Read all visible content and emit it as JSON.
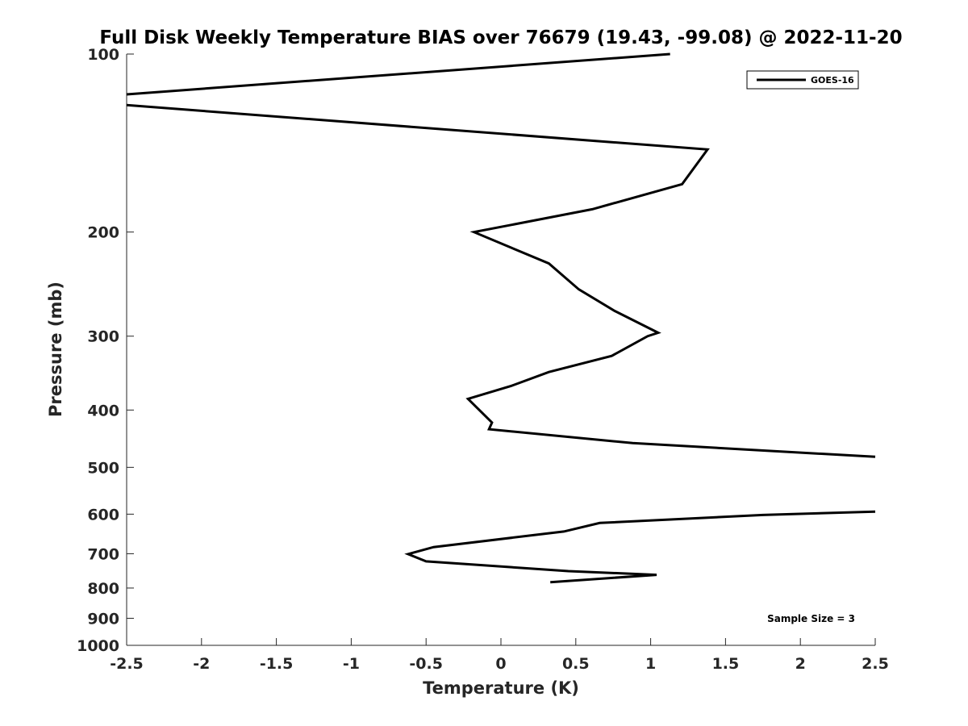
{
  "chart_data": {
    "type": "line",
    "title": "Full Disk Weekly Temperature BIAS over 76679 (19.43, -99.08) @ 2022-11-20",
    "xlabel": "Temperature (K)",
    "ylabel": "Pressure (mb)",
    "xlim": [
      -2.5,
      2.5
    ],
    "ylim": [
      100,
      1000
    ],
    "yscale": "log",
    "yreversed": true,
    "xticks": [
      -2.5,
      -2,
      -1.5,
      -1,
      -0.5,
      0,
      0.5,
      1,
      1.5,
      2,
      2.5
    ],
    "xtick_labels": [
      "-2.5",
      "-2",
      "-1.5",
      "-1",
      "-0.5",
      "0",
      "0.5",
      "1",
      "1.5",
      "2",
      "2.5"
    ],
    "yticks": [
      100,
      200,
      300,
      400,
      500,
      600,
      700,
      800,
      900,
      1000
    ],
    "ytick_labels": [
      "100",
      "200",
      "300",
      "400",
      "500",
      "600",
      "700",
      "800",
      "900",
      "1000"
    ],
    "grid": false,
    "legend_position": "top-right",
    "annotation": "Sample Size = 3",
    "series": [
      {
        "name": "GOES-16",
        "color": "#000000",
        "segments": [
          {
            "x": [
              1.13,
              -2.5
            ],
            "y": [
              100,
              117
            ]
          },
          {
            "x": [
              -2.5,
              1.38,
              1.21,
              0.61,
              -0.18,
              0.32,
              0.52,
              0.76,
              1.05,
              0.98,
              0.74,
              0.32,
              0.07,
              -0.22,
              -0.06,
              -0.08,
              0.88,
              2.5
            ],
            "y": [
              122,
              145,
              166,
              183,
              200,
              226,
              250,
              272,
              296,
              300,
              324,
              345,
              364,
              383,
              420,
              431,
              455,
              480
            ]
          },
          {
            "x": [
              2.5,
              1.75,
              0.66,
              0.42,
              -0.45,
              -0.62,
              -0.5,
              0.45,
              1.04,
              0.33
            ],
            "y": [
              594,
              602,
              621,
              642,
              682,
              701,
              721,
              749,
              760,
              782
            ]
          }
        ]
      }
    ]
  }
}
